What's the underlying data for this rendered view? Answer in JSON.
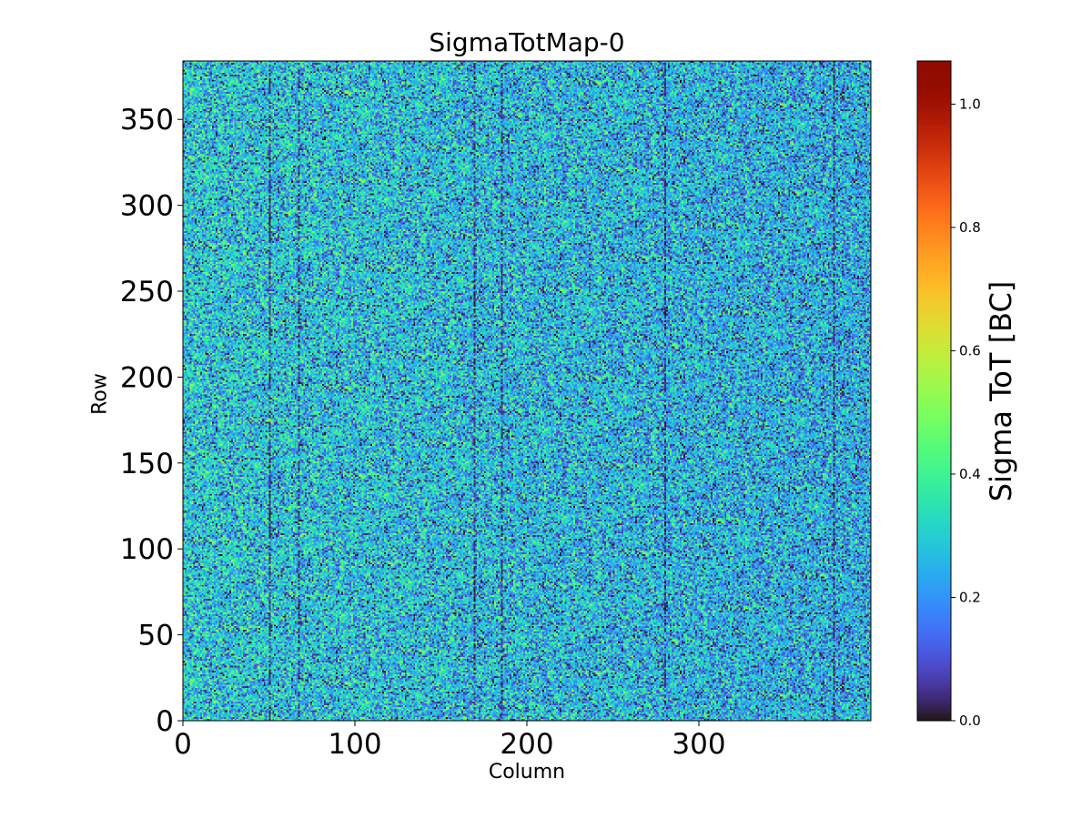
{
  "chart_data": {
    "type": "heatmap",
    "title": "SigmaTotMap-0",
    "xlabel": "Column",
    "ylabel": "Row",
    "colorbar_label": "Sigma ToT [BC]",
    "colormap": "turbo",
    "xlim": [
      0,
      400
    ],
    "ylim": [
      0,
      384
    ],
    "clim": [
      0.0,
      1.07
    ],
    "x_ticks": [
      0,
      100,
      200,
      300
    ],
    "x_tick_labels": [
      "0",
      "100",
      "200",
      "300"
    ],
    "y_ticks": [
      0,
      50,
      100,
      150,
      200,
      250,
      300,
      350
    ],
    "y_tick_labels": [
      "0",
      "50",
      "100",
      "150",
      "200",
      "250",
      "300",
      "350"
    ],
    "colorbar_ticks": [
      0.0,
      0.2,
      0.4,
      0.6,
      0.8,
      1.0
    ],
    "colorbar_tick_labels": [
      "0.0",
      "0.2",
      "0.4",
      "0.6",
      "0.8",
      "1.0"
    ],
    "value_summary": {
      "typical_range": [
        0.0,
        0.5
      ],
      "mean": 0.3,
      "low_value_columns": [
        50,
        67,
        169,
        185,
        280,
        378
      ]
    },
    "grid": false,
    "legend": "none"
  },
  "colors": {
    "background": "#ffffff",
    "axis": "#000000"
  }
}
